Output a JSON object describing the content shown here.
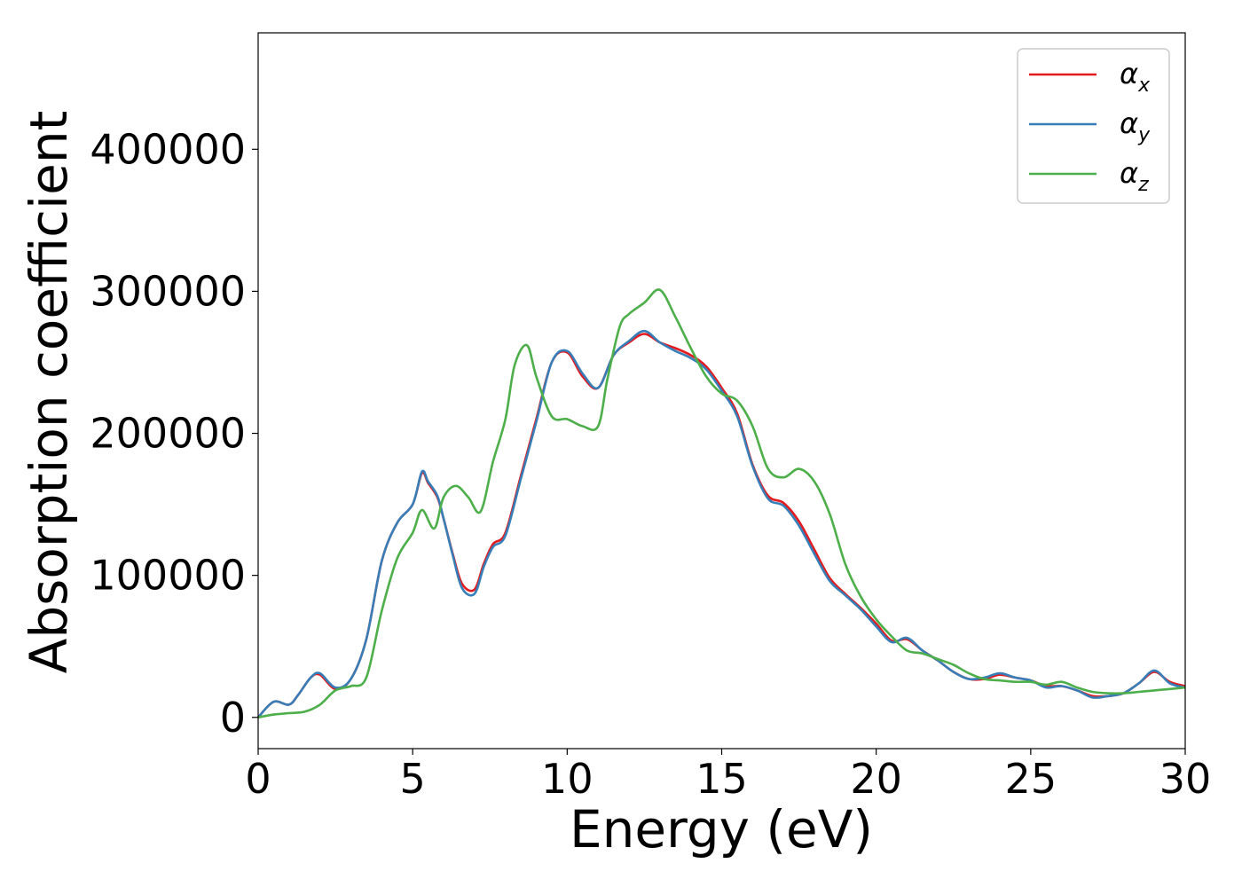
{
  "chart_data": {
    "type": "line",
    "xlabel": "Energy (eV)",
    "ylabel": "Absorption coefficient",
    "xlim": [
      0,
      30
    ],
    "ylim": [
      -22000,
      482000
    ],
    "xticks": [
      0,
      5,
      10,
      15,
      20,
      25,
      30
    ],
    "yticks": [
      0,
      100000,
      200000,
      300000,
      400000
    ],
    "legend_position": "top-right",
    "grid": false,
    "series": [
      {
        "name": "α",
        "subscript": "x",
        "color": "#e41a1c",
        "x": [
          0,
          0.5,
          1,
          1.3,
          1.7,
          2,
          2.5,
          3,
          3.5,
          4,
          4.5,
          5,
          5.3,
          5.5,
          5.8,
          6,
          6.3,
          6.6,
          7,
          7.3,
          7.6,
          8,
          8.5,
          9,
          9.5,
          10,
          10.5,
          11,
          11.5,
          12,
          12.5,
          13,
          13.5,
          14,
          14.5,
          15,
          15.5,
          16,
          16.5,
          17,
          17.5,
          18,
          18.5,
          19,
          19.5,
          20,
          20.5,
          21,
          21.5,
          22,
          22.5,
          23,
          23.5,
          24,
          24.5,
          25,
          25.5,
          26,
          26.5,
          27,
          27.5,
          28,
          28.5,
          29,
          29.5,
          30
        ],
        "y": [
          0,
          11000,
          9000,
          16000,
          28000,
          30000,
          20000,
          27000,
          55000,
          110000,
          137000,
          150000,
          172000,
          165000,
          155000,
          140000,
          115000,
          94000,
          90000,
          108000,
          122000,
          130000,
          170000,
          210000,
          250000,
          257000,
          240000,
          232000,
          255000,
          264000,
          270000,
          264000,
          260000,
          255000,
          247000,
          232000,
          214000,
          178000,
          156000,
          151000,
          138000,
          118000,
          98000,
          87000,
          77000,
          66000,
          54000,
          55000,
          47000,
          40000,
          32000,
          27000,
          27000,
          30000,
          28000,
          26000,
          22000,
          22000,
          19000,
          15000,
          15000,
          17000,
          24000,
          32000,
          25000,
          22000
        ]
      },
      {
        "name": "α",
        "subscript": "y",
        "color": "#377eb8",
        "x": [
          0,
          0.5,
          1,
          1.3,
          1.7,
          2,
          2.5,
          3,
          3.5,
          4,
          4.5,
          5,
          5.3,
          5.5,
          5.8,
          6,
          6.3,
          6.6,
          7,
          7.3,
          7.6,
          8,
          8.5,
          9,
          9.5,
          10,
          10.5,
          11,
          11.5,
          12,
          12.5,
          13,
          13.5,
          14,
          14.5,
          15,
          15.5,
          16,
          16.5,
          17,
          17.5,
          18,
          18.5,
          19,
          19.5,
          20,
          20.5,
          21,
          21.5,
          22,
          22.5,
          23,
          23.5,
          24,
          24.5,
          25,
          25.5,
          26,
          26.5,
          27,
          27.5,
          28,
          28.5,
          29,
          29.5,
          30
        ],
        "y": [
          0,
          11000,
          9000,
          16000,
          28000,
          31000,
          21000,
          27000,
          55000,
          110000,
          137000,
          150000,
          173000,
          166000,
          156000,
          140000,
          114000,
          91000,
          87000,
          106000,
          120000,
          128000,
          168000,
          208000,
          250000,
          258000,
          242000,
          232000,
          255000,
          265000,
          272000,
          264000,
          258000,
          253000,
          245000,
          230000,
          212000,
          177000,
          154000,
          149000,
          135000,
          115000,
          96000,
          86000,
          76000,
          64000,
          53000,
          56000,
          47000,
          40000,
          32000,
          27000,
          28000,
          31000,
          28000,
          26000,
          21000,
          22000,
          19000,
          14000,
          15000,
          17000,
          24000,
          33000,
          24000,
          21000
        ]
      },
      {
        "name": "α",
        "subscript": "z",
        "color": "#4daf4a",
        "x": [
          0,
          0.5,
          1,
          1.5,
          2,
          2.5,
          3,
          3.5,
          4,
          4.5,
          5,
          5.3,
          5.7,
          6,
          6.4,
          6.8,
          7.2,
          7.6,
          8,
          8.3,
          8.7,
          9,
          9.5,
          10,
          10.5,
          11,
          11.3,
          11.7,
          12,
          12.5,
          13,
          13.5,
          14,
          14.5,
          15,
          15.5,
          16,
          16.5,
          17,
          17.5,
          18,
          18.5,
          19,
          19.5,
          20,
          20.5,
          21,
          21.5,
          22,
          22.5,
          23,
          23.5,
          24,
          24.5,
          25,
          25.5,
          26,
          26.5,
          27,
          27.5,
          28,
          28.5,
          29,
          29.5,
          30
        ],
        "y": [
          0,
          2000,
          3000,
          4000,
          9000,
          19000,
          22000,
          28000,
          75000,
          112000,
          130000,
          146000,
          133000,
          155000,
          163000,
          155000,
          145000,
          180000,
          210000,
          248000,
          262000,
          240000,
          212000,
          210000,
          205000,
          205000,
          238000,
          275000,
          284000,
          292000,
          301000,
          282000,
          260000,
          240000,
          228000,
          223000,
          205000,
          175000,
          169000,
          175000,
          166000,
          143000,
          108000,
          85000,
          69000,
          57000,
          47000,
          45000,
          41000,
          37000,
          31000,
          27000,
          26000,
          25000,
          25000,
          23000,
          25000,
          21000,
          18000,
          17000,
          17000,
          18000,
          19000,
          20000,
          21000
        ]
      }
    ]
  }
}
